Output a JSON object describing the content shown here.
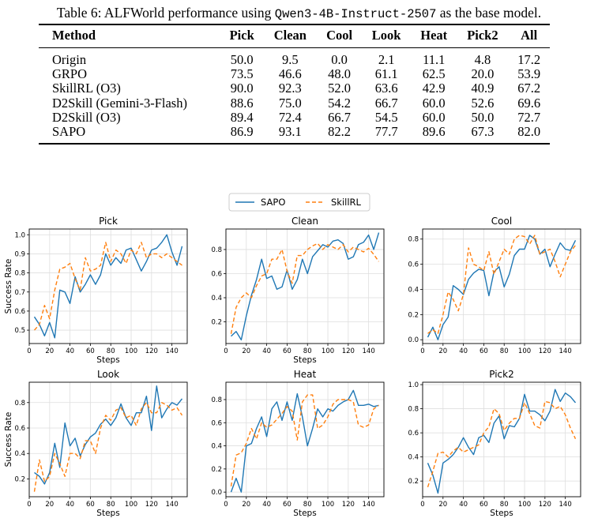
{
  "caption": {
    "prefix": "Table 6: ALFWorld performance using ",
    "model": "Qwen3-4B-Instruct-2507",
    "suffix": " as the base model."
  },
  "table": {
    "headers": [
      "Method",
      "Pick",
      "Clean",
      "Cool",
      "Look",
      "Heat",
      "Pick2",
      "All"
    ],
    "rows": [
      [
        "Origin",
        "50.0",
        "9.5",
        "0.0",
        "2.1",
        "11.1",
        "4.8",
        "17.2"
      ],
      [
        "GRPO",
        "73.5",
        "46.6",
        "48.0",
        "61.1",
        "62.5",
        "20.0",
        "53.9"
      ],
      [
        "SkillRL (O3)",
        "90.0",
        "92.3",
        "52.0",
        "63.6",
        "42.9",
        "40.9",
        "67.2"
      ],
      [
        "D2Skill (Gemini-3-Flash)",
        "88.6",
        "75.0",
        "54.2",
        "66.7",
        "60.0",
        "52.6",
        "69.6"
      ],
      [
        "D2Skill (O3)",
        "89.4",
        "72.4",
        "66.7",
        "54.5",
        "60.0",
        "50.0",
        "72.7"
      ],
      [
        "SAPO",
        "86.9",
        "93.1",
        "82.2",
        "77.7",
        "89.6",
        "67.3",
        "82.0"
      ]
    ]
  },
  "chart_data": [
    {
      "type": "line",
      "title": "Pick",
      "xlabel": "Steps",
      "ylabel": "Success Rate",
      "xlim": [
        0,
        155
      ],
      "ylim": [
        0.43,
        1.03
      ],
      "xticks": [
        0,
        20,
        40,
        60,
        80,
        100,
        120,
        140
      ],
      "yticks": [
        0.5,
        0.6,
        0.7,
        0.8,
        0.9,
        1.0
      ],
      "ytick_labels": [
        "0.5",
        "0.6",
        "0.7",
        "0.8",
        "0.9",
        "1.0"
      ],
      "grid": true,
      "x": [
        5,
        10,
        15,
        20,
        25,
        30,
        35,
        40,
        45,
        50,
        55,
        60,
        65,
        70,
        75,
        80,
        85,
        90,
        95,
        100,
        105,
        110,
        115,
        120,
        125,
        130,
        135,
        140,
        145,
        150
      ],
      "series": [
        {
          "name": "SAPO",
          "style": "solid",
          "color": "#1f77b4",
          "values": [
            0.57,
            0.53,
            0.47,
            0.54,
            0.46,
            0.71,
            0.7,
            0.64,
            0.78,
            0.7,
            0.74,
            0.79,
            0.74,
            0.79,
            0.9,
            0.84,
            0.88,
            0.85,
            0.92,
            0.93,
            0.87,
            0.81,
            0.86,
            0.92,
            0.93,
            0.96,
            1.0,
            0.91,
            0.84,
            0.94
          ]
        },
        {
          "name": "SkillRL",
          "style": "dashed",
          "color": "#ff7f0e",
          "values": [
            0.5,
            0.53,
            0.63,
            0.56,
            0.71,
            0.82,
            0.83,
            0.85,
            0.77,
            0.71,
            0.88,
            0.81,
            0.82,
            0.84,
            0.96,
            0.86,
            0.92,
            0.9,
            0.85,
            0.92,
            0.9,
            0.96,
            0.88,
            0.9,
            0.9,
            0.88,
            0.9,
            0.88,
            0.86,
            0.84
          ]
        }
      ]
    },
    {
      "type": "line",
      "title": "Clean",
      "xlabel": "Steps",
      "ylabel": "",
      "xlim": [
        0,
        155
      ],
      "ylim": [
        0.02,
        0.97
      ],
      "xticks": [
        0,
        20,
        40,
        60,
        80,
        100,
        120,
        140
      ],
      "yticks": [
        0.2,
        0.4,
        0.6,
        0.8
      ],
      "ytick_labels": [
        "0.2",
        "0.4",
        "0.6",
        "0.8"
      ],
      "grid": true,
      "x": [
        5,
        10,
        15,
        20,
        25,
        30,
        35,
        40,
        45,
        50,
        55,
        60,
        65,
        70,
        75,
        80,
        85,
        90,
        95,
        100,
        105,
        110,
        115,
        120,
        125,
        130,
        135,
        140,
        145,
        150
      ],
      "series": [
        {
          "name": "SAPO",
          "style": "solid",
          "color": "#1f77b4",
          "values": [
            0.08,
            0.12,
            0.05,
            0.25,
            0.42,
            0.55,
            0.72,
            0.56,
            0.58,
            0.47,
            0.49,
            0.63,
            0.47,
            0.55,
            0.72,
            0.6,
            0.74,
            0.79,
            0.84,
            0.82,
            0.87,
            0.88,
            0.85,
            0.72,
            0.74,
            0.84,
            0.86,
            0.92,
            0.8,
            0.94
          ]
        },
        {
          "name": "SkillRL",
          "style": "dashed",
          "color": "#ff7f0e",
          "values": [
            0.1,
            0.32,
            0.4,
            0.44,
            0.4,
            0.5,
            0.58,
            0.6,
            0.72,
            0.72,
            0.8,
            0.62,
            0.52,
            0.75,
            0.75,
            0.8,
            0.83,
            0.85,
            0.8,
            0.84,
            0.82,
            0.8,
            0.84,
            0.78,
            0.82,
            0.8,
            0.78,
            0.81,
            0.76,
            0.7
          ]
        }
      ]
    },
    {
      "type": "line",
      "title": "Cool",
      "xlabel": "",
      "ylabel": "",
      "xlim": [
        0,
        155
      ],
      "ylim": [
        -0.03,
        0.88
      ],
      "xticks": [
        0,
        20,
        40,
        60,
        80,
        100,
        120,
        140
      ],
      "yticks": [
        0.0,
        0.2,
        0.4,
        0.6,
        0.8
      ],
      "ytick_labels": [
        "0.0",
        "0.2",
        "0.4",
        "0.6",
        "0.8"
      ],
      "grid": true,
      "x": [
        5,
        10,
        15,
        20,
        25,
        30,
        35,
        40,
        45,
        50,
        55,
        60,
        65,
        70,
        75,
        80,
        85,
        90,
        95,
        100,
        105,
        110,
        115,
        120,
        125,
        130,
        135,
        140,
        145,
        150
      ],
      "series": [
        {
          "name": "SAPO",
          "style": "solid",
          "color": "#1f77b4",
          "values": [
            0.02,
            0.1,
            0.0,
            0.12,
            0.18,
            0.43,
            0.4,
            0.36,
            0.48,
            0.53,
            0.56,
            0.55,
            0.35,
            0.54,
            0.58,
            0.42,
            0.52,
            0.67,
            0.72,
            0.72,
            0.83,
            0.8,
            0.68,
            0.72,
            0.58,
            0.68,
            0.77,
            0.72,
            0.71,
            0.79
          ]
        },
        {
          "name": "SkillRL",
          "style": "dashed",
          "color": "#ff7f0e",
          "values": [
            0.05,
            0.08,
            0.05,
            0.2,
            0.38,
            0.32,
            0.23,
            0.36,
            0.73,
            0.6,
            0.58,
            0.55,
            0.7,
            0.52,
            0.62,
            0.72,
            0.68,
            0.8,
            0.83,
            0.82,
            0.76,
            0.83,
            0.68,
            0.7,
            0.72,
            0.62,
            0.5,
            0.6,
            0.7,
            0.75
          ]
        }
      ]
    },
    {
      "type": "line",
      "title": "Look",
      "xlabel": "Steps",
      "ylabel": "Success Rate",
      "xlim": [
        0,
        155
      ],
      "ylim": [
        0.06,
        0.96
      ],
      "xticks": [
        0,
        20,
        40,
        60,
        80,
        100,
        120,
        140
      ],
      "yticks": [
        0.2,
        0.4,
        0.6,
        0.8
      ],
      "ytick_labels": [
        "0.2",
        "0.4",
        "0.6",
        "0.8"
      ],
      "grid": true,
      "x": [
        5,
        10,
        15,
        20,
        25,
        30,
        35,
        40,
        45,
        50,
        55,
        60,
        65,
        70,
        75,
        80,
        85,
        90,
        95,
        100,
        105,
        110,
        115,
        120,
        125,
        130,
        135,
        140,
        145,
        150
      ],
      "series": [
        {
          "name": "SAPO",
          "style": "solid",
          "color": "#1f77b4",
          "values": [
            0.25,
            0.22,
            0.16,
            0.25,
            0.48,
            0.29,
            0.64,
            0.46,
            0.52,
            0.38,
            0.47,
            0.53,
            0.56,
            0.63,
            0.67,
            0.62,
            0.68,
            0.79,
            0.68,
            0.62,
            0.72,
            0.72,
            0.85,
            0.58,
            0.93,
            0.68,
            0.75,
            0.8,
            0.78,
            0.83
          ]
        },
        {
          "name": "SkillRL",
          "style": "dashed",
          "color": "#ff7f0e",
          "values": [
            0.1,
            0.35,
            0.18,
            0.22,
            0.4,
            0.32,
            0.22,
            0.4,
            0.4,
            0.36,
            0.5,
            0.5,
            0.4,
            0.6,
            0.7,
            0.66,
            0.74,
            0.76,
            0.68,
            0.7,
            0.62,
            0.75,
            0.8,
            0.72,
            0.72,
            0.8,
            0.78,
            0.74,
            0.76,
            0.7
          ]
        }
      ]
    },
    {
      "type": "line",
      "title": "Heat",
      "xlabel": "Steps",
      "ylabel": "",
      "xlim": [
        0,
        155
      ],
      "ylim": [
        -0.04,
        0.95
      ],
      "xticks": [
        0,
        20,
        40,
        60,
        80,
        100,
        120,
        140
      ],
      "yticks": [
        0.0,
        0.2,
        0.4,
        0.6,
        0.8
      ],
      "ytick_labels": [
        "0.0",
        "0.2",
        "0.4",
        "0.6",
        "0.8"
      ],
      "grid": true,
      "x": [
        5,
        10,
        15,
        20,
        25,
        30,
        35,
        40,
        45,
        50,
        55,
        60,
        65,
        70,
        75,
        80,
        85,
        90,
        95,
        100,
        105,
        110,
        115,
        120,
        125,
        130,
        135,
        140,
        145,
        150
      ],
      "series": [
        {
          "name": "SAPO",
          "style": "solid",
          "color": "#1f77b4",
          "values": [
            0.0,
            0.12,
            0.0,
            0.4,
            0.42,
            0.55,
            0.65,
            0.48,
            0.72,
            0.78,
            0.62,
            0.78,
            0.62,
            0.85,
            0.65,
            0.4,
            0.55,
            0.72,
            0.65,
            0.72,
            0.7,
            0.75,
            0.78,
            0.8,
            0.88,
            0.75,
            0.75,
            0.76,
            0.74,
            0.75
          ]
        },
        {
          "name": "SkillRL",
          "style": "dashed",
          "color": "#ff7f0e",
          "values": [
            0.05,
            0.32,
            0.34,
            0.42,
            0.55,
            0.46,
            0.6,
            0.56,
            0.58,
            0.63,
            0.68,
            0.74,
            0.7,
            0.45,
            0.78,
            0.84,
            0.84,
            0.55,
            0.58,
            0.65,
            0.76,
            0.8,
            0.8,
            0.8,
            0.78,
            0.58,
            0.56,
            0.58,
            0.72,
            0.75
          ]
        }
      ]
    },
    {
      "type": "line",
      "title": "Pick2",
      "xlabel": "Steps",
      "ylabel": "",
      "xlim": [
        0,
        155
      ],
      "ylim": [
        0.07,
        1.02
      ],
      "xticks": [
        0,
        20,
        40,
        60,
        80,
        100,
        120,
        140
      ],
      "yticks": [
        0.2,
        0.4,
        0.6,
        0.8,
        1.0
      ],
      "ytick_labels": [
        "0.2",
        "0.4",
        "0.6",
        "0.8",
        "1.0"
      ],
      "grid": true,
      "x": [
        5,
        10,
        15,
        20,
        25,
        30,
        35,
        40,
        45,
        50,
        55,
        60,
        65,
        70,
        75,
        80,
        85,
        90,
        95,
        100,
        105,
        110,
        115,
        120,
        125,
        130,
        135,
        140,
        145,
        150
      ],
      "series": [
        {
          "name": "SAPO",
          "style": "solid",
          "color": "#1f77b4",
          "values": [
            0.35,
            0.25,
            0.1,
            0.35,
            0.38,
            0.42,
            0.48,
            0.56,
            0.48,
            0.42,
            0.56,
            0.58,
            0.52,
            0.68,
            0.74,
            0.55,
            0.66,
            0.65,
            0.72,
            0.92,
            0.78,
            0.78,
            0.75,
            0.7,
            0.78,
            0.96,
            0.86,
            0.93,
            0.9,
            0.85
          ]
        },
        {
          "name": "SkillRL",
          "style": "dashed",
          "color": "#ff7f0e",
          "values": [
            0.15,
            0.28,
            0.43,
            0.44,
            0.4,
            0.45,
            0.48,
            0.44,
            0.46,
            0.48,
            0.5,
            0.6,
            0.65,
            0.8,
            0.76,
            0.62,
            0.68,
            0.72,
            0.72,
            0.85,
            0.76,
            0.66,
            0.64,
            0.86,
            0.85,
            0.8,
            0.82,
            0.75,
            0.64,
            0.55
          ]
        }
      ]
    }
  ],
  "legend": {
    "items": [
      {
        "label": "SAPO",
        "color": "#1f77b4",
        "style": "solid"
      },
      {
        "label": "SkillRL",
        "color": "#ff7f0e",
        "style": "dashed"
      }
    ]
  }
}
